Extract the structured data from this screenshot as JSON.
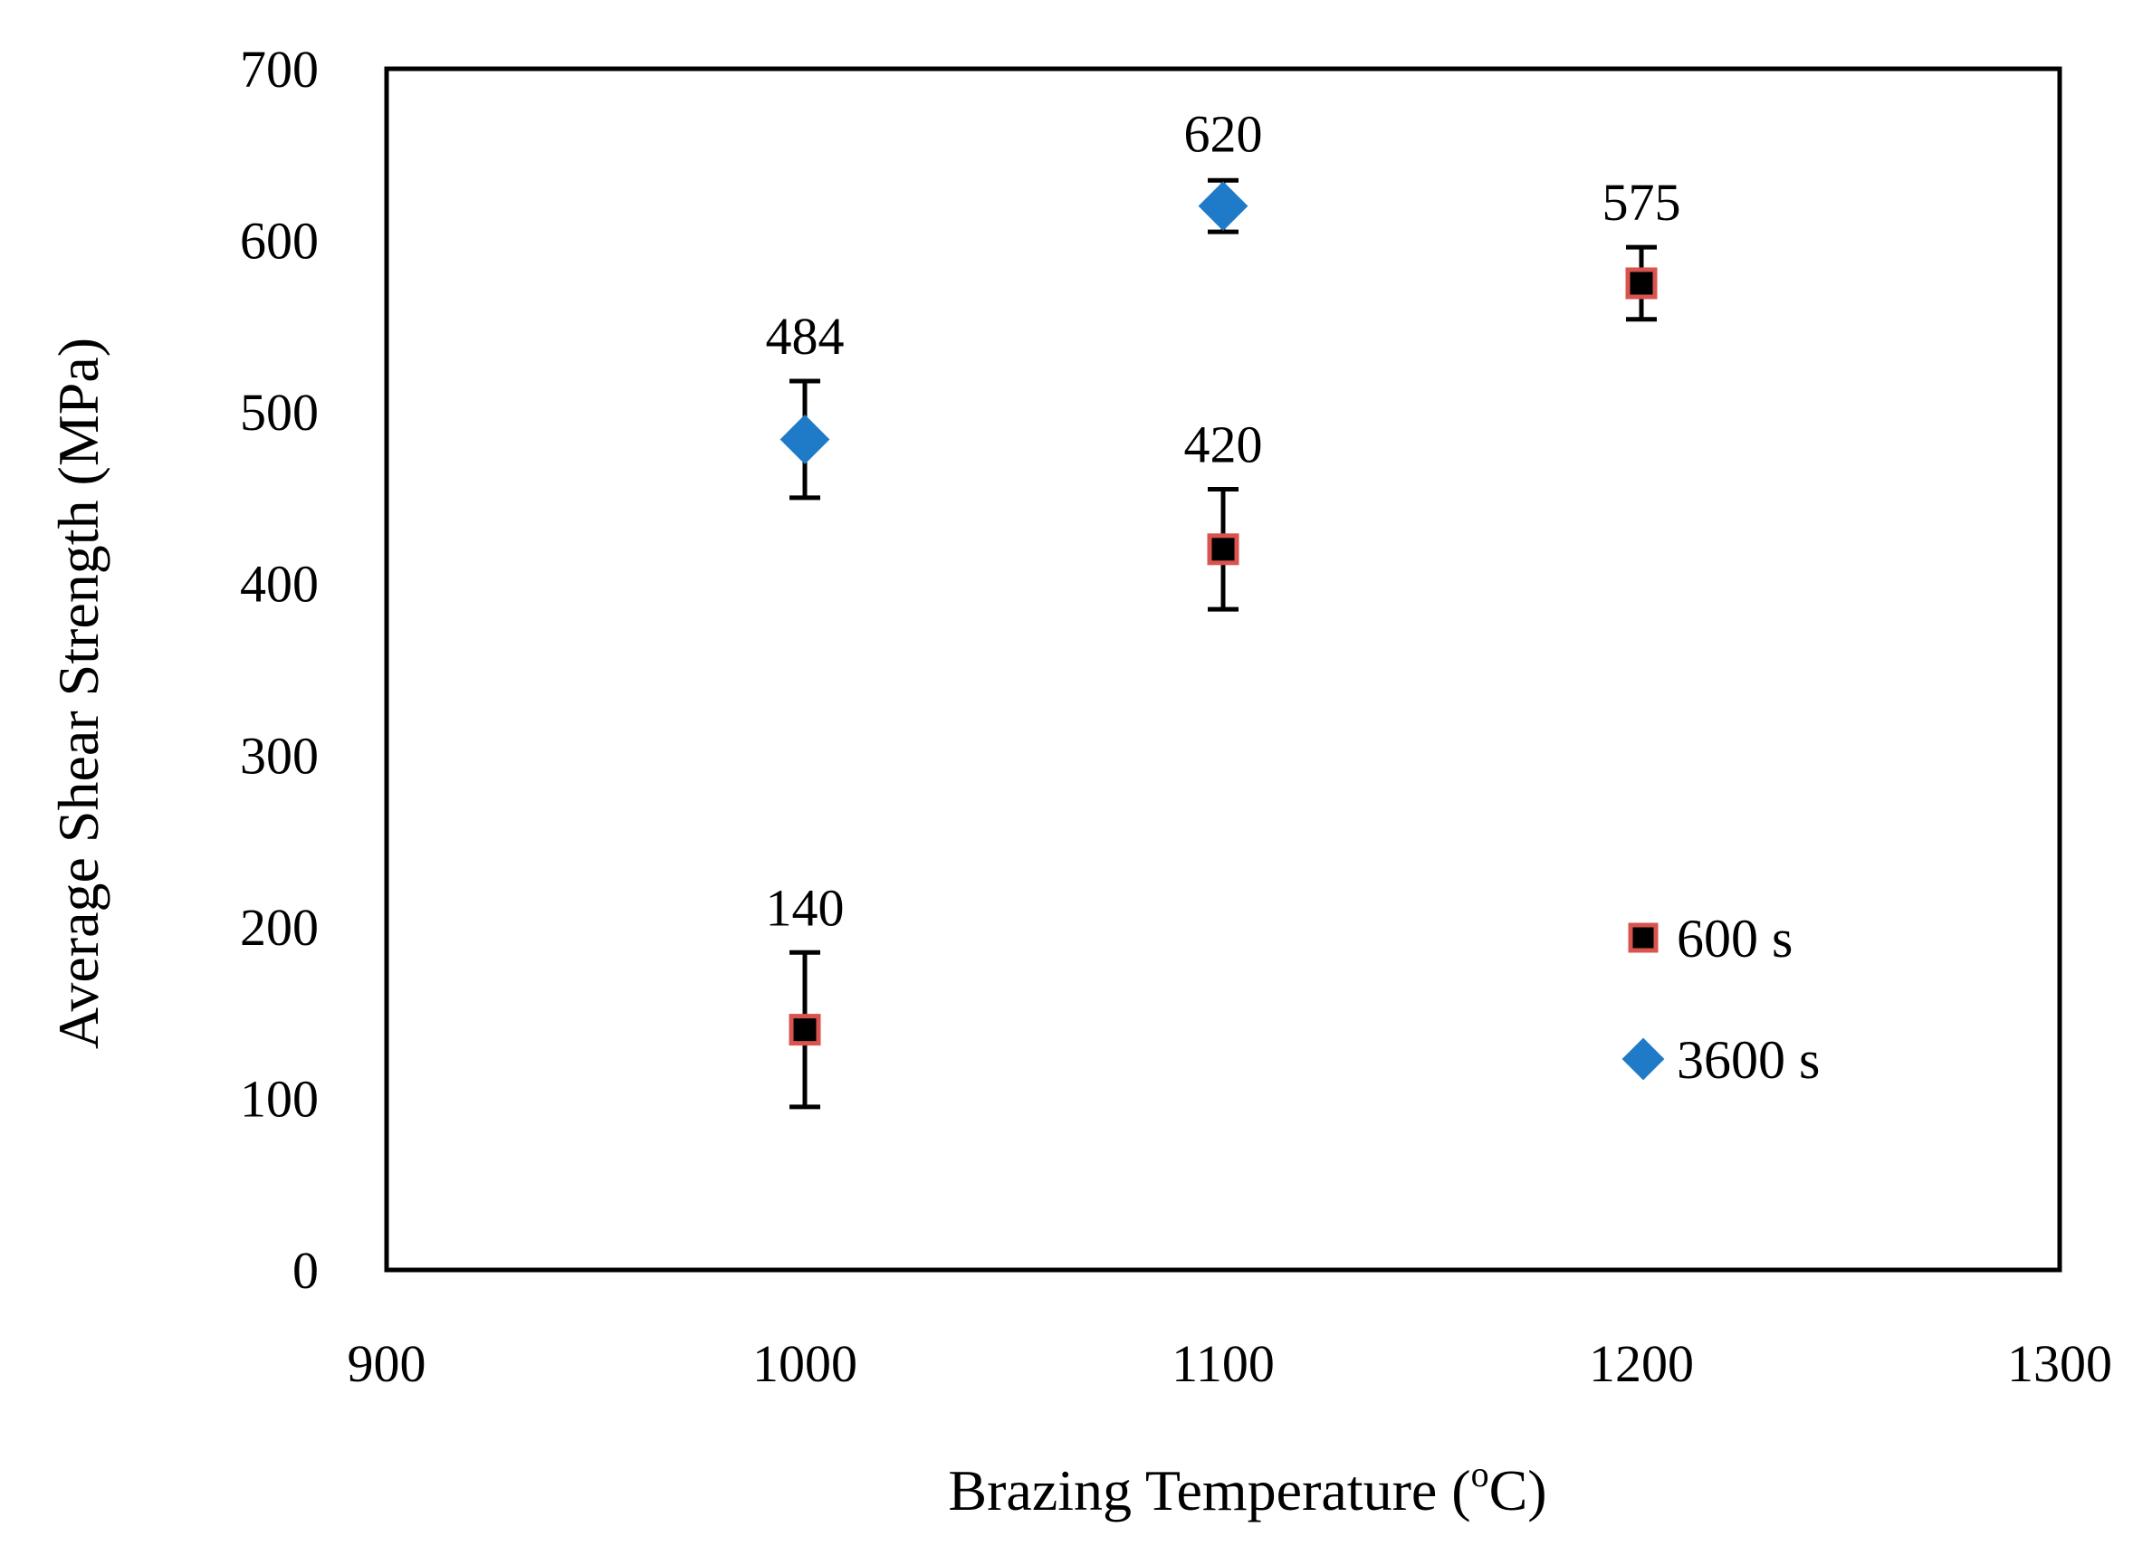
{
  "chart_data": {
    "type": "scatter",
    "title": "",
    "xlabel": "Brazing  Temperature (",
    "xlabel_sup": "o",
    "xlabel_unit": "C)",
    "ylabel": "Average  Shear  Strength (MPa)",
    "xlim": [
      900,
      1300
    ],
    "ylim": [
      0,
      700
    ],
    "x_ticks": [
      "900",
      "1000",
      "1100",
      "1200",
      "1300"
    ],
    "y_ticks": [
      "0",
      "100",
      "200",
      "300",
      "400",
      "500",
      "600",
      "700"
    ],
    "grid": false,
    "legend_position": "lower-right",
    "series": [
      {
        "name": "600 s",
        "marker": "square",
        "fill_color": "#000000",
        "edge_color": "#d9534f",
        "points": [
          {
            "x": 1000,
            "y": 140,
            "err_low": 45,
            "err_high": 45,
            "label": "140"
          },
          {
            "x": 1100,
            "y": 420,
            "err_low": 35,
            "err_high": 35,
            "label": "420"
          },
          {
            "x": 1200,
            "y": 575,
            "err_low": 21,
            "err_high": 21,
            "label": "575"
          }
        ]
      },
      {
        "name": "3600 s",
        "marker": "diamond",
        "fill_color": "#1f7bc8",
        "edge_color": "#1f7bc8",
        "points": [
          {
            "x": 1000,
            "y": 484,
            "err_low": 34,
            "err_high": 34,
            "label": "484"
          },
          {
            "x": 1100,
            "y": 620,
            "err_low": 15,
            "err_high": 15,
            "label": "620"
          }
        ]
      }
    ]
  }
}
